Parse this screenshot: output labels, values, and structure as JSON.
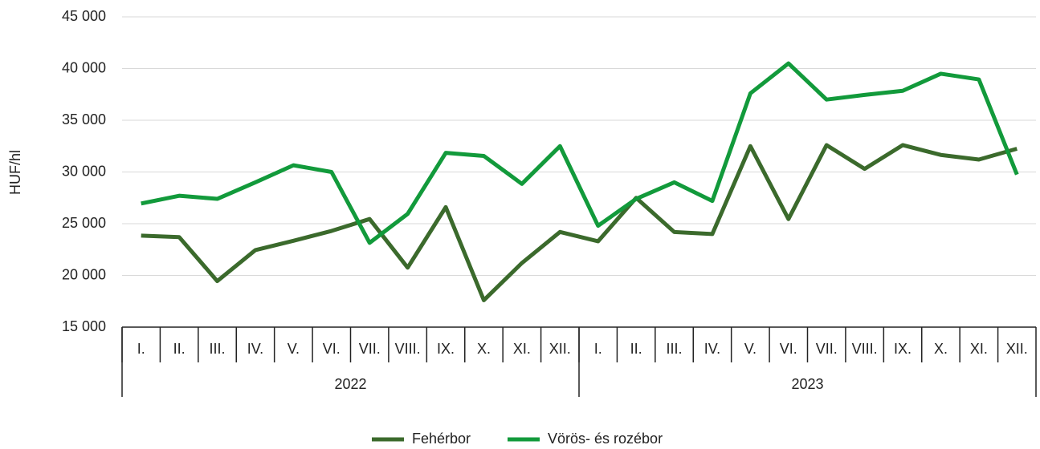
{
  "chart_data": {
    "type": "line",
    "y_label": "HUF/hl",
    "categories": [
      "I.",
      "II.",
      "III.",
      "IV.",
      "V.",
      "VI.",
      "VII.",
      "VIII.",
      "IX.",
      "X.",
      "XI.",
      "XII.",
      "I.",
      "II.",
      "III.",
      "IV.",
      "V.",
      "VI.",
      "VII.",
      "VIII.",
      "IX.",
      "X.",
      "XI.",
      "XII."
    ],
    "category_groups": [
      "2022",
      "2023"
    ],
    "series": [
      {
        "name": "Fehérbor",
        "color": "#3b6a2c",
        "values": [
          23850,
          23700,
          19450,
          22450,
          23350,
          24300,
          25450,
          20750,
          26600,
          17600,
          21200,
          24200,
          23300,
          27500,
          24200,
          24000,
          32500,
          25450,
          32600,
          30300,
          32600,
          31650,
          31200,
          32250
        ]
      },
      {
        "name": "Vörös- és rozébor",
        "color": "#129a3b",
        "values": [
          26950,
          27700,
          27400,
          29000,
          30650,
          30000,
          23150,
          25950,
          31850,
          31550,
          28850,
          32500,
          24800,
          27400,
          29000,
          27200,
          37600,
          40500,
          37000,
          37450,
          37850,
          39500,
          38950,
          29750
        ]
      }
    ],
    "ylim": [
      15000,
      45000
    ],
    "yticks": [
      {
        "value": 15000,
        "label": "15 000"
      },
      {
        "value": 20000,
        "label": "20 000"
      },
      {
        "value": 25000,
        "label": "25 000"
      },
      {
        "value": 30000,
        "label": "30 000"
      },
      {
        "value": 35000,
        "label": "35 000"
      },
      {
        "value": 40000,
        "label": "40 000"
      },
      {
        "value": 45000,
        "label": "45 000"
      }
    ],
    "grid": true,
    "legend": "bottom"
  }
}
